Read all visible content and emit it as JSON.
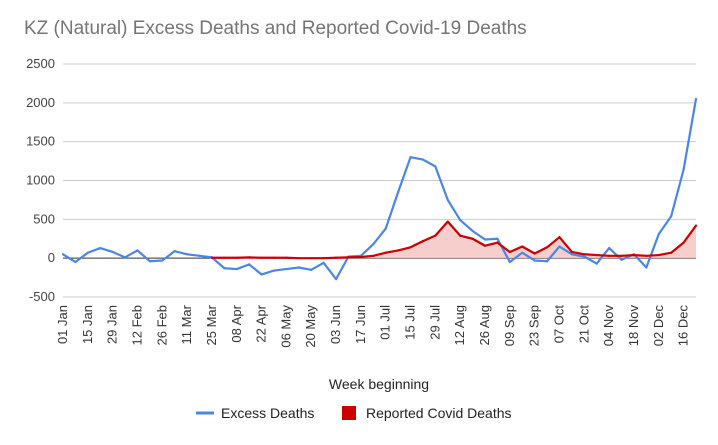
{
  "chart_data": {
    "type": "line",
    "title": "KZ (Natural) Excess Deaths and Reported Covid-19 Deaths",
    "xlabel": "Week beginning",
    "ylabel": "",
    "ylim": [
      -500,
      2500
    ],
    "yticks": [
      -500,
      0,
      500,
      1000,
      1500,
      2000,
      2500
    ],
    "grid": true,
    "legend_position": "bottom",
    "categories": [
      "01 Jan",
      "08 Jan",
      "15 Jan",
      "22 Jan",
      "29 Jan",
      "05 Feb",
      "12 Feb",
      "19 Feb",
      "26 Feb",
      "04 Mar",
      "11 Mar",
      "18 Mar",
      "25 Mar",
      "01 Apr",
      "08 Apr",
      "15 Apr",
      "22 Apr",
      "29 Apr",
      "06 May",
      "13 May",
      "20 May",
      "27 May",
      "03 Jun",
      "10 Jun",
      "17 Jun",
      "24 Jun",
      "01 Jul",
      "08 Jul",
      "15 Jul",
      "22 Jul",
      "29 Jul",
      "05 Aug",
      "12 Aug",
      "19 Aug",
      "26 Aug",
      "02 Sep",
      "09 Sep",
      "16 Sep",
      "23 Sep",
      "30 Sep",
      "07 Oct",
      "14 Oct",
      "21 Oct",
      "28 Oct",
      "04 Nov",
      "11 Nov",
      "18 Nov",
      "25 Nov",
      "02 Dec",
      "09 Dec",
      "16 Dec",
      "23 Dec"
    ],
    "tick_labels": [
      "01 Jan",
      "15 Jan",
      "29 Jan",
      "12 Feb",
      "26 Feb",
      "11 Mar",
      "25 Mar",
      "08 Apr",
      "22 Apr",
      "06 May",
      "20 May",
      "03 Jun",
      "17 Jun",
      "01 Jul",
      "15 Jul",
      "29 Jul",
      "12 Aug",
      "26 Aug",
      "09 Sep",
      "23 Sep",
      "07 Oct",
      "21 Oct",
      "04 Nov",
      "18 Nov",
      "02 Dec",
      "16 Dec"
    ],
    "series": [
      {
        "name": "Excess Deaths",
        "color": "#4a86e8",
        "values": [
          50,
          -50,
          70,
          130,
          80,
          10,
          100,
          -40,
          -30,
          90,
          50,
          30,
          10,
          -130,
          -140,
          -80,
          -210,
          -160,
          -140,
          -120,
          -150,
          -60,
          -270,
          20,
          30,
          180,
          380,
          850,
          1300,
          1270,
          1180,
          750,
          490,
          350,
          240,
          250,
          -50,
          70,
          -30,
          -40,
          150,
          50,
          20,
          -70,
          130,
          -20,
          50,
          -120,
          310,
          540,
          1140,
          2050
        ]
      },
      {
        "name": "Reported Covid Deaths",
        "color": "#cc0000",
        "fill": "#f4c7c3",
        "values": [
          null,
          null,
          null,
          null,
          null,
          null,
          null,
          null,
          null,
          null,
          null,
          null,
          5,
          5,
          5,
          10,
          5,
          5,
          5,
          0,
          0,
          0,
          5,
          10,
          15,
          30,
          70,
          100,
          140,
          220,
          290,
          470,
          290,
          250,
          160,
          200,
          80,
          150,
          60,
          140,
          270,
          80,
          50,
          40,
          30,
          30,
          40,
          30,
          40,
          70,
          200,
          420
        ]
      }
    ]
  }
}
